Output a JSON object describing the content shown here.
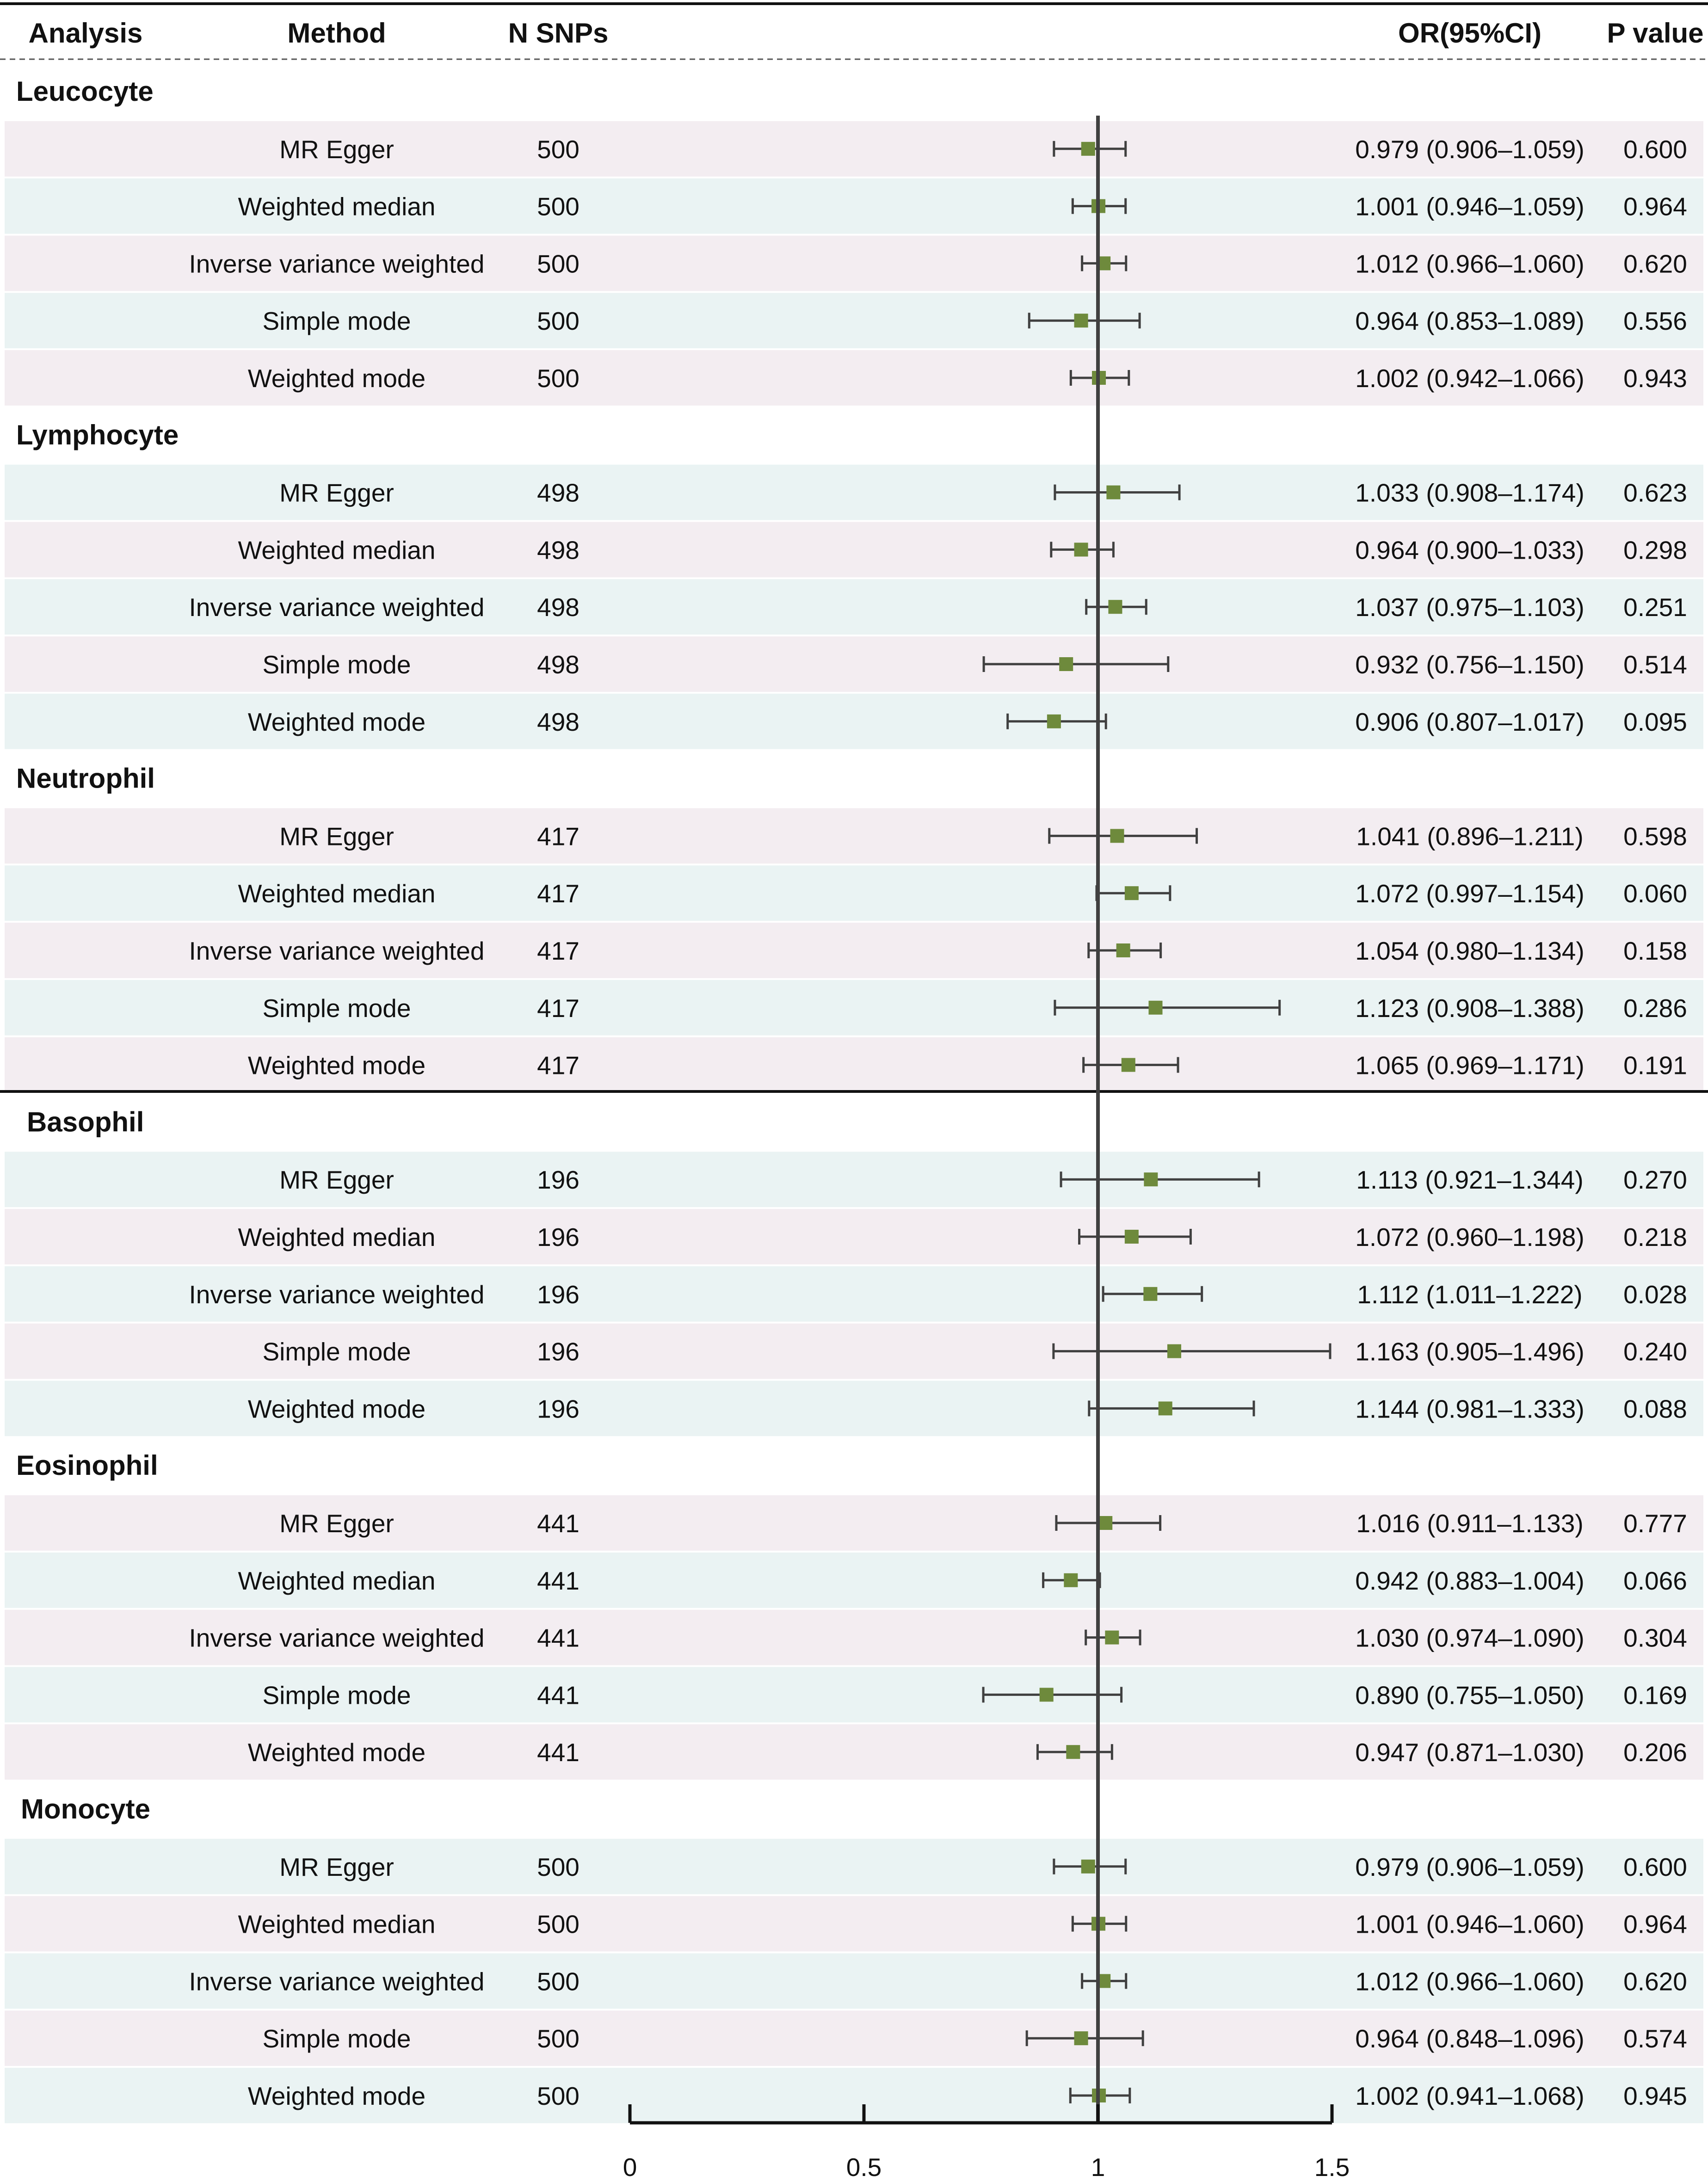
{
  "header": {
    "analysis": "Analysis",
    "method": "Method",
    "nsnps": "N SNPs",
    "or_ci": "OR(95%CI)",
    "pvalue": "P value"
  },
  "colors": {
    "point": "#6e8a3c",
    "whisker": "#404040",
    "ref_line": "#404040",
    "band_pink": "#f3edf1",
    "band_blue": "#eaf3f3",
    "text": "#111111"
  },
  "chart_data": {
    "type": "forest",
    "xlabel": "",
    "xlim": [
      0,
      1.5
    ],
    "reference_line": 1,
    "x_ticks": [
      0,
      0.5,
      1,
      1.5
    ],
    "x_tick_labels": [
      "0",
      "0.5",
      "1",
      "1.5"
    ],
    "groups": [
      {
        "name": "Leucocyte",
        "rows": [
          {
            "method": "MR Egger",
            "nsnps": "500",
            "or": 0.979,
            "lo": 0.906,
            "hi": 1.059,
            "or_ci": "0.979 (0.906–1.059)",
            "p": "0.600"
          },
          {
            "method": "Weighted median",
            "nsnps": "500",
            "or": 1.001,
            "lo": 0.946,
            "hi": 1.059,
            "or_ci": "1.001 (0.946–1.059)",
            "p": "0.964"
          },
          {
            "method": "Inverse variance weighted",
            "nsnps": "500",
            "or": 1.012,
            "lo": 0.966,
            "hi": 1.06,
            "or_ci": "1.012 (0.966–1.060)",
            "p": "0.620"
          },
          {
            "method": "Simple mode",
            "nsnps": "500",
            "or": 0.964,
            "lo": 0.853,
            "hi": 1.089,
            "or_ci": "0.964 (0.853–1.089)",
            "p": "0.556"
          },
          {
            "method": "Weighted mode",
            "nsnps": "500",
            "or": 1.002,
            "lo": 0.942,
            "hi": 1.066,
            "or_ci": "1.002 (0.942–1.066)",
            "p": "0.943"
          }
        ]
      },
      {
        "name": "Lymphocyte",
        "rows": [
          {
            "method": "MR Egger",
            "nsnps": "498",
            "or": 1.033,
            "lo": 0.908,
            "hi": 1.174,
            "or_ci": "1.033 (0.908–1.174)",
            "p": "0.623"
          },
          {
            "method": "Weighted median",
            "nsnps": "498",
            "or": 0.964,
            "lo": 0.9,
            "hi": 1.033,
            "or_ci": "0.964 (0.900–1.033)",
            "p": "0.298"
          },
          {
            "method": "Inverse variance weighted",
            "nsnps": "498",
            "or": 1.037,
            "lo": 0.975,
            "hi": 1.103,
            "or_ci": "1.037 (0.975–1.103)",
            "p": "0.251"
          },
          {
            "method": "Simple mode",
            "nsnps": "498",
            "or": 0.932,
            "lo": 0.756,
            "hi": 1.15,
            "or_ci": "0.932 (0.756–1.150)",
            "p": "0.514"
          },
          {
            "method": "Weighted mode",
            "nsnps": "498",
            "or": 0.906,
            "lo": 0.807,
            "hi": 1.017,
            "or_ci": "0.906 (0.807–1.017)",
            "p": "0.095"
          }
        ]
      },
      {
        "name": "Neutrophil",
        "rows": [
          {
            "method": "MR Egger",
            "nsnps": "417",
            "or": 1.041,
            "lo": 0.896,
            "hi": 1.211,
            "or_ci": "1.041 (0.896–1.211)",
            "p": "0.598"
          },
          {
            "method": "Weighted median",
            "nsnps": "417",
            "or": 1.072,
            "lo": 0.997,
            "hi": 1.154,
            "or_ci": "1.072 (0.997–1.154)",
            "p": "0.060"
          },
          {
            "method": "Inverse variance weighted",
            "nsnps": "417",
            "or": 1.054,
            "lo": 0.98,
            "hi": 1.134,
            "or_ci": "1.054 (0.980–1.134)",
            "p": "0.158"
          },
          {
            "method": "Simple mode",
            "nsnps": "417",
            "or": 1.123,
            "lo": 0.908,
            "hi": 1.388,
            "or_ci": "1.123 (0.908–1.388)",
            "p": "0.286"
          },
          {
            "method": "Weighted mode",
            "nsnps": "417",
            "or": 1.065,
            "lo": 0.969,
            "hi": 1.171,
            "or_ci": "1.065 (0.969–1.171)",
            "p": "0.191"
          }
        ]
      },
      {
        "name": "Basophil",
        "rows": [
          {
            "method": "MR Egger",
            "nsnps": "196",
            "or": 1.113,
            "lo": 0.921,
            "hi": 1.344,
            "or_ci": "1.113 (0.921–1.344)",
            "p": "0.270"
          },
          {
            "method": "Weighted median",
            "nsnps": "196",
            "or": 1.072,
            "lo": 0.96,
            "hi": 1.198,
            "or_ci": "1.072 (0.960–1.198)",
            "p": "0.218"
          },
          {
            "method": "Inverse variance weighted",
            "nsnps": "196",
            "or": 1.112,
            "lo": 1.011,
            "hi": 1.222,
            "or_ci": "1.112 (1.011–1.222)",
            "p": "0.028"
          },
          {
            "method": "Simple mode",
            "nsnps": "196",
            "or": 1.163,
            "lo": 0.905,
            "hi": 1.496,
            "or_ci": "1.163 (0.905–1.496)",
            "p": "0.240"
          },
          {
            "method": "Weighted mode",
            "nsnps": "196",
            "or": 1.144,
            "lo": 0.981,
            "hi": 1.333,
            "or_ci": "1.144 (0.981–1.333)",
            "p": "0.088"
          }
        ]
      },
      {
        "name": "Eosinophil",
        "rows": [
          {
            "method": "MR Egger",
            "nsnps": "441",
            "or": 1.016,
            "lo": 0.911,
            "hi": 1.133,
            "or_ci": "1.016 (0.911–1.133)",
            "p": "0.777"
          },
          {
            "method": "Weighted median",
            "nsnps": "441",
            "or": 0.942,
            "lo": 0.883,
            "hi": 1.004,
            "or_ci": "0.942 (0.883–1.004)",
            "p": "0.066"
          },
          {
            "method": "Inverse variance weighted",
            "nsnps": "441",
            "or": 1.03,
            "lo": 0.974,
            "hi": 1.09,
            "or_ci": "1.030 (0.974–1.090)",
            "p": "0.304"
          },
          {
            "method": "Simple mode",
            "nsnps": "441",
            "or": 0.89,
            "lo": 0.755,
            "hi": 1.05,
            "or_ci": "0.890 (0.755–1.050)",
            "p": "0.169"
          },
          {
            "method": "Weighted mode",
            "nsnps": "441",
            "or": 0.947,
            "lo": 0.871,
            "hi": 1.03,
            "or_ci": "0.947 (0.871–1.030)",
            "p": "0.206"
          }
        ]
      },
      {
        "name": "Monocyte",
        "rows": [
          {
            "method": "MR Egger",
            "nsnps": "500",
            "or": 0.979,
            "lo": 0.906,
            "hi": 1.059,
            "or_ci": "0.979 (0.906–1.059)",
            "p": "0.600"
          },
          {
            "method": "Weighted median",
            "nsnps": "500",
            "or": 1.001,
            "lo": 0.946,
            "hi": 1.06,
            "or_ci": "1.001 (0.946–1.060)",
            "p": "0.964"
          },
          {
            "method": "Inverse variance weighted",
            "nsnps": "500",
            "or": 1.012,
            "lo": 0.966,
            "hi": 1.06,
            "or_ci": "1.012 (0.966–1.060)",
            "p": "0.620"
          },
          {
            "method": "Simple mode",
            "nsnps": "500",
            "or": 0.964,
            "lo": 0.848,
            "hi": 1.096,
            "or_ci": "0.964 (0.848–1.096)",
            "p": "0.574"
          },
          {
            "method": "Weighted mode",
            "nsnps": "500",
            "or": 1.002,
            "lo": 0.941,
            "hi": 1.068,
            "or_ci": "1.002 (0.941–1.068)",
            "p": "0.945"
          }
        ]
      }
    ]
  }
}
